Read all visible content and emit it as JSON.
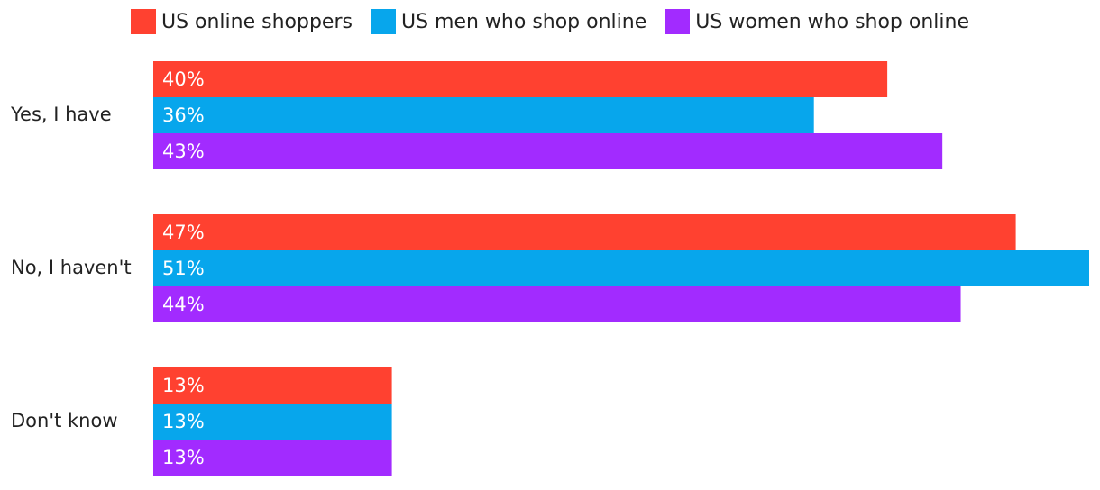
{
  "chart_data": {
    "type": "bar",
    "orientation": "horizontal",
    "categories": [
      "Yes, I have",
      "No, I haven't",
      "Don't know"
    ],
    "series": [
      {
        "name": "US online shoppers",
        "color": "#ff4130",
        "values": [
          40,
          47,
          13
        ],
        "value_labels": [
          "40%",
          "47%",
          "13%"
        ]
      },
      {
        "name": "US men who shop online",
        "color": "#07a6ec",
        "values": [
          36,
          51,
          13
        ],
        "value_labels": [
          "36%",
          "51%",
          "13%"
        ]
      },
      {
        "name": "US women who shop online",
        "color": "#a22bff",
        "values": [
          43,
          44,
          13
        ],
        "value_labels": [
          "43%",
          "44%",
          "13%"
        ]
      }
    ],
    "legend": "top"
  }
}
